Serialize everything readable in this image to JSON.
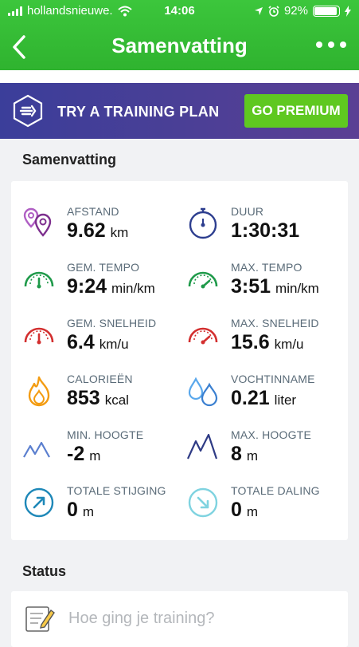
{
  "status_bar": {
    "carrier": "hollandsnieuwe.",
    "time": "14:06",
    "battery": "92%"
  },
  "nav": {
    "title": "Samenvatting"
  },
  "banner": {
    "text": "TRY A TRAINING PLAN",
    "button": "GO PREMIUM"
  },
  "summary": {
    "title": "Samenvatting",
    "stats": [
      {
        "label": "AFSTAND",
        "value": "9.62",
        "unit": "km"
      },
      {
        "label": "DUUR",
        "value": "1:30:31",
        "unit": ""
      },
      {
        "label": "GEM. TEMPO",
        "value": "9:24",
        "unit": "min/km"
      },
      {
        "label": "MAX. TEMPO",
        "value": "3:51",
        "unit": "min/km"
      },
      {
        "label": "GEM. SNELHEID",
        "value": "6.4",
        "unit": "km/u"
      },
      {
        "label": "MAX. SNELHEID",
        "value": "15.6",
        "unit": "km/u"
      },
      {
        "label": "CALORIEËN",
        "value": "853",
        "unit": "kcal"
      },
      {
        "label": "VOCHTINNAME",
        "value": "0.21",
        "unit": "liter"
      },
      {
        "label": "MIN. HOOGTE",
        "value": "-2",
        "unit": "m"
      },
      {
        "label": "MAX. HOOGTE",
        "value": "8",
        "unit": "m"
      },
      {
        "label": "TOTALE STIJGING",
        "value": "0",
        "unit": "m"
      },
      {
        "label": "TOTALE DALING",
        "value": "0",
        "unit": "m"
      }
    ]
  },
  "status_section": {
    "title": "Status",
    "placeholder": "Hoe ging je training?"
  },
  "colors": {
    "header_green": "#35b935",
    "premium_green": "#5fc820",
    "banner_purple": "#3f3e98",
    "pin_purple": "#8e44ad",
    "stopwatch_blue": "#2d3e8f",
    "tempo_green": "#1f9a4a",
    "speed_red": "#d32f2f",
    "flame_orange": "#f39c12",
    "drop_blue": "#3a8ee6",
    "mountain_navy": "#2f3b85",
    "ascent_blue": "#1e88b8",
    "descent_cyan": "#7fd3e0"
  }
}
